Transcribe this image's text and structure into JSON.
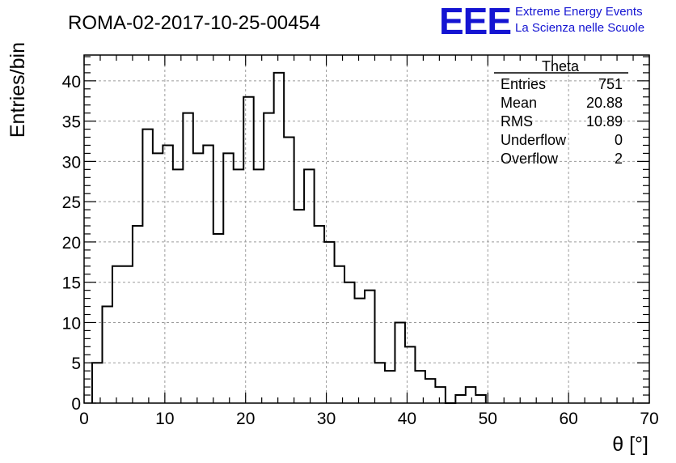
{
  "chart_data": {
    "type": "bar",
    "title": "ROMA-02-2017-10-25-00454",
    "xlabel": "θ [°]",
    "ylabel": "Entries/bin",
    "xlim": [
      0,
      70
    ],
    "ylim": [
      0,
      43.2
    ],
    "grid": true,
    "bin_edges_start": 1.0,
    "bin_width": 1.25,
    "values": [
      5,
      12,
      17,
      17,
      22,
      34,
      31,
      32,
      29,
      36,
      31,
      32,
      21,
      31,
      29,
      38,
      29,
      36,
      41,
      33,
      24,
      29,
      22,
      20,
      17,
      15,
      13,
      14,
      5,
      4,
      10,
      7,
      4,
      3,
      2,
      0,
      1,
      2,
      1
    ],
    "x_ticks": [
      "0",
      "10",
      "20",
      "30",
      "40",
      "50",
      "60",
      "70"
    ],
    "y_ticks": [
      "0",
      "5",
      "10",
      "15",
      "20",
      "25",
      "30",
      "35",
      "40"
    ],
    "stats": {
      "name": "Theta",
      "rows": [
        {
          "label": "Entries",
          "value": "751"
        },
        {
          "label": "Mean",
          "value": "20.88"
        },
        {
          "label": "RMS",
          "value": "10.89"
        },
        {
          "label": "Underflow",
          "value": "0"
        },
        {
          "label": "Overflow",
          "value": "2"
        }
      ]
    }
  },
  "logo": {
    "abbrev": "EEE",
    "line1": "Extreme Energy Events",
    "line2": "La Scienza nelle Scuole",
    "color": "#1414d2"
  }
}
